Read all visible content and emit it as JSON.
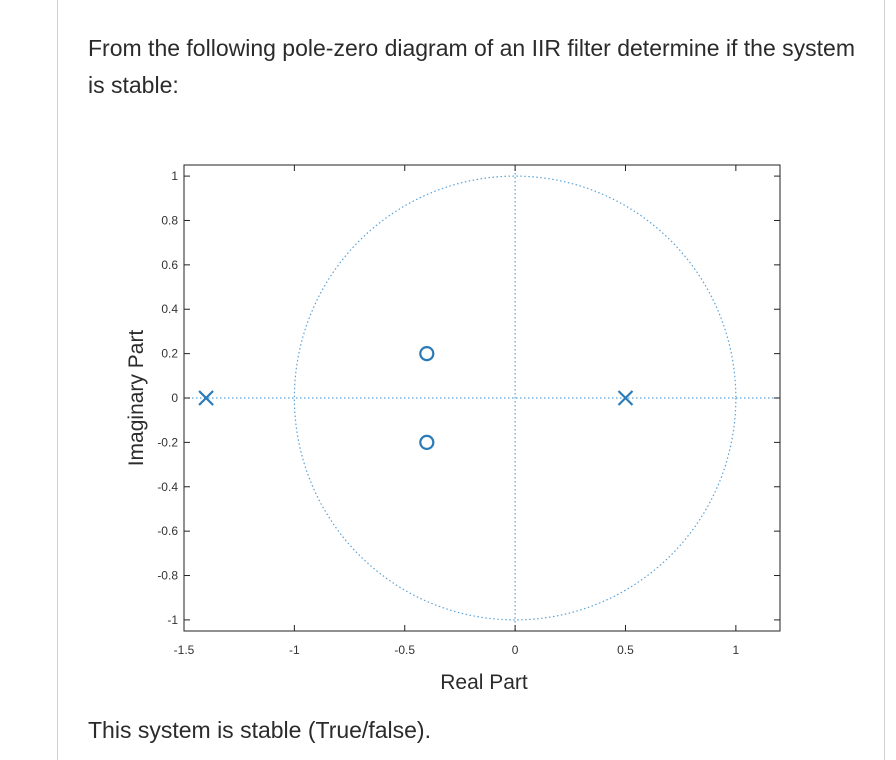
{
  "question": {
    "text": "From the following pole-zero diagram of an IIR filter determine if the system is stable:"
  },
  "answer_prompt": "This system is stable (True/false).",
  "colors": {
    "marker": "#2a7ab8",
    "unit_circle": "#5aa3d8",
    "frame": "#222222",
    "text": "#2b2b2b"
  },
  "chart_data": {
    "type": "scatter",
    "title": "",
    "xlabel": "Real Part",
    "ylabel": "Imaginary Part",
    "xlim": [
      -1.5,
      1.2
    ],
    "ylim": [
      -1.05,
      1.05
    ],
    "xticks": [
      -1.5,
      -1,
      -0.5,
      0,
      0.5,
      1
    ],
    "xtick_labels": [
      "-1.5",
      "-1",
      "-0.5",
      "0",
      "0.5",
      "1"
    ],
    "yticks": [
      1,
      0.8,
      0.6,
      0.4,
      0.2,
      0,
      -0.2,
      -0.4,
      -0.6,
      -0.8,
      -1
    ],
    "ytick_labels": [
      "1",
      "0.8",
      "0.6",
      "0.4",
      "0.2",
      "0",
      "-0.2",
      "-0.4",
      "-0.6",
      "-0.8",
      "-1"
    ],
    "grid": false,
    "unit_circle": true,
    "series": [
      {
        "marker": "x",
        "points": [
          {
            "x": -1.4,
            "y": 0
          },
          {
            "x": 0.5,
            "y": 0
          }
        ]
      },
      {
        "marker": "o",
        "points": [
          {
            "x": -0.4,
            "y": 0.2
          },
          {
            "x": -0.4,
            "y": -0.2
          }
        ]
      }
    ]
  }
}
